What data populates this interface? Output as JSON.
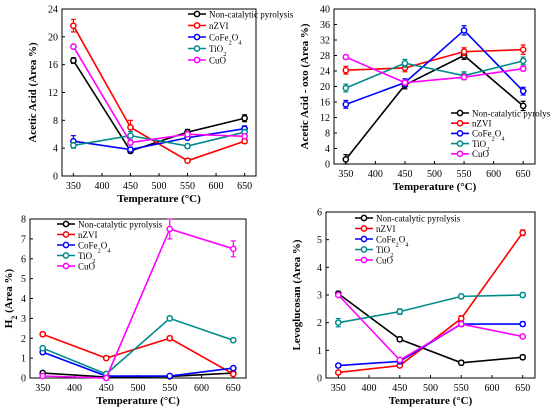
{
  "colors": {
    "non_catalytic": "#000000",
    "nzvi": "#ff0000",
    "cofe2o4": "#0000ff",
    "tio2": "#008b8b",
    "cuo": "#ff00ff"
  },
  "chart_data": [
    {
      "type": "line",
      "x": [
        350,
        450,
        550,
        650
      ],
      "xlabel": "Temperature (°C)",
      "ylabel": "Acetic Acid (Area %)",
      "xlim": [
        330,
        670
      ],
      "ylim": [
        0,
        24
      ],
      "yticks": [
        0,
        4,
        8,
        12,
        16,
        20,
        24
      ],
      "xticks": [
        350,
        400,
        450,
        500,
        550,
        600,
        650
      ],
      "legend_position": "top-right",
      "series": [
        {
          "name": "Non-catalytic pyrolysis",
          "color_key": "non_catalytic",
          "marker": "circle",
          "values": [
            16.6,
            3.6,
            6.3,
            8.3
          ],
          "errors": [
            0.4,
            0.3,
            0.4,
            0.5
          ]
        },
        {
          "name": "nZVI",
          "color_key": "nzvi",
          "marker": "circle",
          "values": [
            21.6,
            7.0,
            2.2,
            5.0
          ],
          "errors": [
            0.9,
            1.0,
            0.3,
            0.3
          ]
        },
        {
          "name": "CoFe2O4",
          "color_key": "cofe2o4",
          "marker": "circle",
          "values": [
            5.0,
            3.8,
            5.5,
            6.8
          ],
          "errors": [
            0.8,
            0.3,
            0.3,
            0.4
          ]
        },
        {
          "name": "TiO2",
          "color_key": "tio2",
          "marker": "circle",
          "values": [
            4.4,
            5.8,
            4.3,
            6.3
          ],
          "errors": [
            0.4,
            0.6,
            0.3,
            0.4
          ]
        },
        {
          "name": "CuO",
          "color_key": "cuo",
          "marker": "circle",
          "values": [
            18.6,
            4.8,
            6.0,
            5.7
          ],
          "errors": [
            0.3,
            0.3,
            0.3,
            0.3
          ]
        }
      ]
    },
    {
      "type": "line",
      "x": [
        350,
        450,
        550,
        650
      ],
      "xlabel": "Temperature (°C)",
      "ylabel": "Acetic Acid - oxo (Area %)",
      "xlim": [
        330,
        670
      ],
      "ylim": [
        0,
        40
      ],
      "yticks": [
        0,
        4,
        8,
        12,
        16,
        20,
        24,
        28,
        32,
        36,
        40
      ],
      "xticks": [
        350,
        400,
        450,
        500,
        550,
        600,
        650
      ],
      "legend_position": "bottom-right",
      "series": [
        {
          "name": "Non-catalytic pyrolysis",
          "color_key": "non_catalytic",
          "marker": "circle",
          "values": [
            1.2,
            20.4,
            28.0,
            15.0
          ],
          "errors": [
            1.2,
            1.0,
            1.0,
            1.2
          ]
        },
        {
          "name": "nZVI",
          "color_key": "nzvi",
          "marker": "circle",
          "values": [
            24.2,
            24.8,
            29.0,
            29.5
          ],
          "errors": [
            1.0,
            1.0,
            1.0,
            1.2
          ]
        },
        {
          "name": "CoFe2O4",
          "color_key": "cofe2o4",
          "marker": "circle",
          "values": [
            15.4,
            21.0,
            34.5,
            18.8
          ],
          "errors": [
            1.0,
            1.0,
            1.2,
            1.0
          ]
        },
        {
          "name": "TiO2",
          "color_key": "tio2",
          "marker": "circle",
          "values": [
            19.6,
            26.0,
            22.8,
            26.6
          ],
          "errors": [
            1.0,
            1.0,
            1.0,
            1.0
          ]
        },
        {
          "name": "CuO",
          "color_key": "cuo",
          "marker": "circle",
          "values": [
            27.6,
            21.0,
            22.4,
            24.6
          ],
          "errors": [
            0.5,
            0.6,
            0.6,
            0.6
          ]
        }
      ]
    },
    {
      "type": "line",
      "x": [
        350,
        450,
        550,
        650
      ],
      "xlabel": "Temperature (°C)",
      "ylabel": "H2 (Area %)",
      "xlim": [
        330,
        670
      ],
      "ylim": [
        0,
        8
      ],
      "yticks": [
        0,
        1,
        2,
        3,
        4,
        5,
        6,
        7,
        8
      ],
      "xticks": [
        350,
        400,
        450,
        500,
        550,
        600,
        650
      ],
      "legend_position": "top-left",
      "series": [
        {
          "name": "Non-catalytic pyrolysis",
          "color_key": "non_catalytic",
          "marker": "circle",
          "values": [
            0.25,
            0.05,
            0.08,
            0.25
          ],
          "errors": [
            0.05,
            0.03,
            0.03,
            0.05
          ]
        },
        {
          "name": "nZVI",
          "color_key": "nzvi",
          "marker": "circle",
          "values": [
            2.2,
            1.0,
            2.0,
            0.2
          ],
          "errors": [
            0.1,
            0.08,
            0.1,
            0.05
          ]
        },
        {
          "name": "CoFe2O4",
          "color_key": "cofe2o4",
          "marker": "circle",
          "values": [
            1.3,
            0.1,
            0.1,
            0.5
          ],
          "errors": [
            0.1,
            0.05,
            0.05,
            0.05
          ]
        },
        {
          "name": "TiO2",
          "color_key": "tio2",
          "marker": "circle",
          "values": [
            1.5,
            0.2,
            3.0,
            1.9
          ],
          "errors": [
            0.1,
            0.05,
            0.1,
            0.1
          ]
        },
        {
          "name": "CuO",
          "color_key": "cuo",
          "marker": "circle",
          "values": [
            0.1,
            0.0,
            7.5,
            6.5
          ],
          "errors": [
            0.05,
            0.03,
            0.5,
            0.4
          ]
        }
      ]
    },
    {
      "type": "line",
      "x": [
        350,
        450,
        550,
        650
      ],
      "xlabel": "Temperature (°C)",
      "ylabel": "Levoglucosan (Area %)",
      "xlim": [
        330,
        670
      ],
      "ylim": [
        0,
        6
      ],
      "yticks": [
        0,
        1,
        2,
        3,
        4,
        5,
        6
      ],
      "xticks": [
        350,
        400,
        450,
        500,
        550,
        600,
        650
      ],
      "legend_position": "top-left",
      "series": [
        {
          "name": "Non-catalytic pyrolysis",
          "color_key": "non_catalytic",
          "marker": "circle",
          "values": [
            3.05,
            1.4,
            0.55,
            0.75
          ],
          "errors": [
            0.08,
            0.08,
            0.08,
            0.08
          ]
        },
        {
          "name": "nZVI",
          "color_key": "nzvi",
          "marker": "circle",
          "values": [
            0.2,
            0.45,
            2.15,
            5.25
          ],
          "errors": [
            0.05,
            0.05,
            0.1,
            0.1
          ]
        },
        {
          "name": "CoFe2O4",
          "color_key": "cofe2o4",
          "marker": "circle",
          "values": [
            0.45,
            0.6,
            1.95,
            1.95
          ],
          "errors": [
            0.05,
            0.05,
            0.08,
            0.08
          ]
        },
        {
          "name": "TiO2",
          "color_key": "tio2",
          "marker": "circle",
          "values": [
            2.0,
            2.4,
            2.95,
            3.0
          ],
          "errors": [
            0.15,
            0.1,
            0.08,
            0.08
          ]
        },
        {
          "name": "CuO",
          "color_key": "cuo",
          "marker": "circle",
          "values": [
            3.0,
            0.65,
            1.95,
            1.5
          ],
          "errors": [
            0.05,
            0.05,
            0.08,
            0.05
          ]
        }
      ]
    }
  ]
}
